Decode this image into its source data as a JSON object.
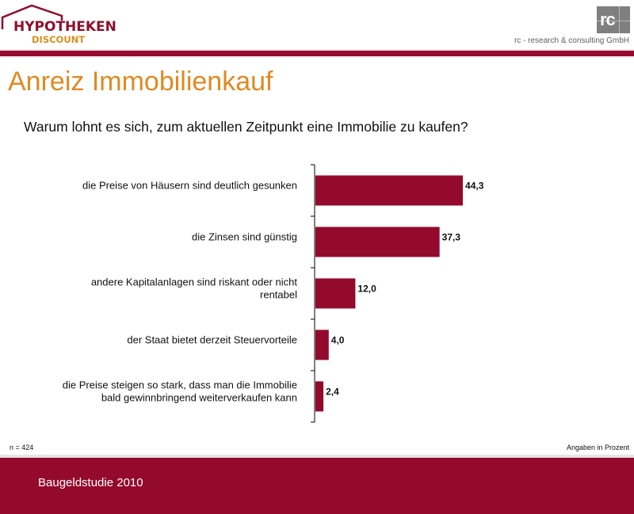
{
  "header": {
    "logo_main": "HYPOTHEKEN",
    "logo_sub": "DISCOUNT",
    "rc_logo_text": "rc",
    "company_name": "rc - research & consulting GmbH"
  },
  "title": "Anreiz Immobilienkauf",
  "question": "Warum lohnt es sich, zum aktuellen Zeitpunkt eine Immobilie zu kaufen?",
  "chart_data": {
    "type": "bar",
    "orientation": "horizontal",
    "categories": [
      [
        "die Preise von Häusern sind deutlich gesunken"
      ],
      [
        "die Zinsen sind günstig"
      ],
      [
        "andere Kapitalanlagen sind riskant oder nicht",
        "rentabel"
      ],
      [
        "der Staat bietet derzeit Steuervorteile"
      ],
      [
        "die Preise steigen so stark, dass man die Immobilie",
        "bald gewinnbringend weiterverkaufen kann"
      ]
    ],
    "values": [
      44.3,
      37.3,
      12.0,
      4.0,
      2.4
    ],
    "value_labels": [
      "44,3",
      "37,3",
      "12,0",
      "4,0",
      "2,4"
    ],
    "xlim": [
      0,
      100
    ],
    "bar_color": "#930a2c",
    "grid": false,
    "legend": "none"
  },
  "notes": {
    "sample": "n = 424",
    "unit": "Angaben in Prozent"
  },
  "footer": {
    "text": "Baugeldstudie 2010"
  },
  "colors": {
    "brand_red": "#930a2c",
    "accent_orange": "#e08a22"
  }
}
